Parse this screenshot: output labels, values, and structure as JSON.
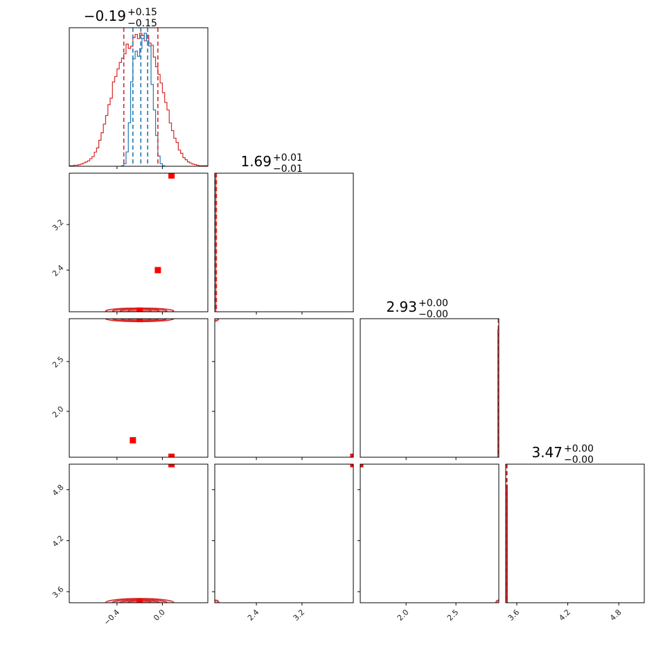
{
  "chart_data": {
    "type": "corner",
    "parameters": [
      {
        "range": [
          -0.82,
          0.4
        ],
        "ticks": [
          -0.4,
          0.0
        ],
        "tick_labels": [
          "−0.4",
          "0.0"
        ],
        "title": {
          "value": "−0.19",
          "plus": "+0.15",
          "minus": "−0.15"
        }
      },
      {
        "range": [
          1.67,
          4.1
        ],
        "ticks": [
          2.4,
          3.2
        ],
        "tick_labels": [
          "2.4",
          "3.2"
        ],
        "title": {
          "value": "1.69",
          "plus": "+0.01",
          "minus": "−0.01"
        }
      },
      {
        "range": [
          1.54,
          2.93
        ],
        "ticks": [
          2.0,
          2.5
        ],
        "tick_labels": [
          "2.0",
          "2.5"
        ],
        "title": {
          "value": "2.93",
          "plus": "+0.00",
          "minus": "−0.00"
        }
      },
      {
        "range": [
          3.47,
          5.1
        ],
        "ticks": [
          3.6,
          4.2,
          4.8
        ],
        "tick_labels": [
          "3.6",
          "4.2",
          "4.8"
        ],
        "title": {
          "value": "3.47",
          "plus": "+0.00",
          "minus": "−0.00"
        }
      }
    ],
    "series": [
      {
        "color": "#d62728"
      },
      {
        "color": "#1f77b4"
      }
    ],
    "marginals": {
      "p0_red": {
        "edges": [
          -0.82,
          -0.8,
          -0.78,
          -0.76,
          -0.74,
          -0.72,
          -0.7,
          -0.68,
          -0.66,
          -0.64,
          -0.62,
          -0.6,
          -0.58,
          -0.56,
          -0.54,
          -0.52,
          -0.5,
          -0.48,
          -0.46,
          -0.44,
          -0.42,
          -0.4,
          -0.38,
          -0.36,
          -0.34,
          -0.32,
          -0.3,
          -0.28,
          -0.26,
          -0.24,
          -0.22,
          -0.2,
          -0.18,
          -0.16,
          -0.14,
          -0.12,
          -0.1,
          -0.08,
          -0.06,
          -0.04,
          -0.02,
          0.0,
          0.02,
          0.04,
          0.06,
          0.08,
          0.1,
          0.12,
          0.14,
          0.16,
          0.18,
          0.2,
          0.22,
          0.24,
          0.26,
          0.28,
          0.3,
          0.32,
          0.34,
          0.36,
          0.38,
          0.4
        ],
        "counts": [
          0.5,
          0.5,
          1,
          1,
          1.5,
          2,
          3,
          4,
          5,
          7,
          9,
          13,
          17,
          24,
          31,
          39,
          47,
          57,
          63,
          78,
          83,
          90,
          96,
          100,
          104,
          113,
          109,
          111,
          119,
          122,
          118,
          123,
          121,
          116,
          121,
          114,
          112,
          101,
          92,
          85,
          77,
          68,
          59,
          52,
          40,
          33,
          26,
          22,
          15,
          12,
          8,
          6,
          4,
          3,
          2,
          1.5,
          1,
          0.5,
          0.5,
          0.5,
          0.5
        ]
      },
      "p0_blue": {
        "edges": [
          -0.36,
          -0.34,
          -0.32,
          -0.3,
          -0.28,
          -0.26,
          -0.24,
          -0.22,
          -0.2,
          -0.18,
          -0.16,
          -0.14,
          -0.12,
          -0.1,
          -0.08,
          -0.06,
          -0.04,
          -0.02,
          0.0,
          0.02
        ],
        "counts": [
          1,
          5,
          28,
          85,
          165,
          210,
          225,
          215,
          230,
          250,
          260,
          245,
          235,
          160,
          110,
          60,
          20,
          5,
          1
        ]
      },
      "p0_red_quantiles": [
        -0.34,
        -0.04
      ],
      "p0_blue_quantiles": [
        -0.26,
        -0.19,
        -0.13
      ],
      "p1_red_quantiles": [
        1.68,
        1.7
      ],
      "p2_red_quantiles": [
        2.925,
        2.932
      ],
      "p3_red_quantiles": [
        3.475,
        3.485
      ],
      "p1_red_spike": {
        "x": [
          1.67,
          1.69
        ],
        "height": 0.98
      },
      "p2_red_spike": {
        "x": [
          2.92,
          2.93
        ],
        "height": 0.92
      },
      "p3_red_spike": {
        "x": [
          3.48,
          3.49
        ],
        "height": 0.85
      }
    },
    "points": [
      {
        "pair": [
          0,
          1
        ],
        "xy": [
          [
            0.08,
            4.06
          ],
          [
            -0.04,
            2.4
          ],
          [
            -0.2,
            1.69
          ]
        ]
      },
      {
        "pair": [
          0,
          2
        ],
        "xy": [
          [
            -0.2,
            2.93
          ],
          [
            -0.26,
            1.71
          ],
          [
            0.08,
            1.545
          ]
        ]
      },
      {
        "pair": [
          0,
          3
        ],
        "xy": [
          [
            0.08,
            5.1
          ],
          [
            -0.2,
            3.48
          ]
        ]
      },
      {
        "pair": [
          1,
          2
        ],
        "xy": [
          [
            4.1,
            1.545
          ]
        ]
      },
      {
        "pair": [
          1,
          3
        ],
        "xy": [
          [
            4.1,
            5.1
          ]
        ]
      },
      {
        "pair": [
          2,
          3
        ],
        "xy": [
          [
            1.54,
            5.1
          ]
        ]
      }
    ],
    "contours": [
      {
        "pair": [
          0,
          1
        ],
        "center": [
          -0.2,
          1.685
        ],
        "rx": [
          0.3,
          0.24,
          0.17,
          0.1
        ],
        "ry": [
          0.05,
          0.04,
          0.028,
          0.016
        ]
      },
      {
        "pair": [
          0,
          2
        ],
        "center": [
          -0.2,
          2.93
        ],
        "rx": [
          0.3,
          0.24,
          0.17,
          0.1
        ],
        "ry": [
          0.03,
          0.024,
          0.017,
          0.01
        ]
      },
      {
        "pair": [
          0,
          3
        ],
        "center": [
          -0.2,
          3.472
        ],
        "rx": [
          0.3,
          0.24,
          0.17,
          0.1
        ],
        "ry": [
          0.048,
          0.038,
          0.027,
          0.016
        ]
      },
      {
        "pair": [
          1,
          2
        ],
        "center": [
          1.685,
          2.927
        ],
        "rx": [
          0.012,
          0.008
        ],
        "ry": [
          0.012,
          0.008
        ]
      },
      {
        "pair": [
          1,
          3
        ],
        "center": [
          1.69,
          3.475
        ],
        "rx": [
          0.012,
          0.008
        ],
        "ry": [
          0.014,
          0.009
        ]
      },
      {
        "pair": [
          2,
          3
        ],
        "center": [
          2.93,
          3.475
        ],
        "rx": [
          0.012,
          0.008
        ],
        "ry": [
          0.014,
          0.009
        ]
      }
    ]
  }
}
